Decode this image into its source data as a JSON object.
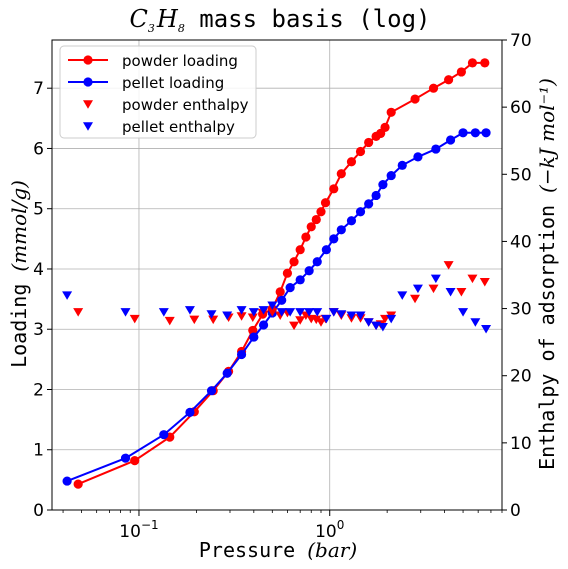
{
  "chart_data": {
    "type": "line",
    "title": {
      "mol_C": "C",
      "sub_3": "3",
      "mol_H": "H",
      "sub_8": "8",
      "rest": " mass basis (log)"
    },
    "xlabel": {
      "text": "Pressure ",
      "unit": "(bar)"
    },
    "ylabel": {
      "text": "Loading ",
      "unit": "(mmol/g)"
    },
    "y2label": {
      "text": "Enthalpy of adsorption ",
      "unit": "(−kJ mol⁻¹)"
    },
    "x_scale": "log",
    "xlim": [
      0.035,
      8.0
    ],
    "ylim": [
      0,
      7.8
    ],
    "y2lim": [
      0,
      70
    ],
    "x_ticks": [
      {
        "value": 0.1,
        "base": "10",
        "exp": "−1"
      },
      {
        "value": 1,
        "base": "10",
        "exp": "0"
      }
    ],
    "y_ticks": [
      0,
      1,
      2,
      3,
      4,
      5,
      6,
      7
    ],
    "y2_ticks": [
      0,
      10,
      20,
      30,
      40,
      50,
      60,
      70
    ],
    "grid": true,
    "legend_position": "top-left",
    "series": [
      {
        "name": "powder loading",
        "kind": "loading",
        "color": "#ff0000",
        "x": [
          0.048,
          0.095,
          0.145,
          0.195,
          0.245,
          0.295,
          0.345,
          0.395,
          0.445,
          0.5,
          0.55,
          0.6,
          0.65,
          0.7,
          0.75,
          0.8,
          0.85,
          0.9,
          0.95,
          1.05,
          1.15,
          1.3,
          1.45,
          1.6,
          1.75,
          1.85,
          1.95,
          2.1,
          2.8,
          3.5,
          4.2,
          4.9,
          5.6,
          6.5
        ],
        "y": [
          0.43,
          0.82,
          1.21,
          1.63,
          1.98,
          2.3,
          2.63,
          2.98,
          3.25,
          3.34,
          3.62,
          3.93,
          4.12,
          4.32,
          4.53,
          4.7,
          4.82,
          4.95,
          5.1,
          5.33,
          5.58,
          5.78,
          5.95,
          6.1,
          6.2,
          6.25,
          6.35,
          6.6,
          6.82,
          7.0,
          7.14,
          7.27,
          7.42,
          7.42
        ]
      },
      {
        "name": "pellet loading",
        "kind": "loading",
        "color": "#0000ff",
        "x": [
          0.042,
          0.085,
          0.135,
          0.185,
          0.24,
          0.29,
          0.345,
          0.4,
          0.45,
          0.5,
          0.56,
          0.62,
          0.7,
          0.78,
          0.86,
          0.96,
          1.05,
          1.15,
          1.3,
          1.45,
          1.6,
          1.75,
          1.9,
          2.1,
          2.4,
          2.9,
          3.6,
          4.3,
          5.0,
          5.8,
          6.6
        ],
        "y": [
          0.48,
          0.86,
          1.25,
          1.62,
          1.98,
          2.27,
          2.58,
          2.87,
          3.07,
          3.27,
          3.48,
          3.69,
          3.82,
          3.97,
          4.12,
          4.32,
          4.5,
          4.65,
          4.8,
          4.95,
          5.08,
          5.22,
          5.4,
          5.55,
          5.72,
          5.86,
          5.99,
          6.14,
          6.26,
          6.26,
          6.26
        ]
      },
      {
        "name": "powder enthalpy",
        "kind": "enthalpy",
        "color": "#ff0000",
        "x": [
          0.048,
          0.095,
          0.145,
          0.195,
          0.245,
          0.295,
          0.345,
          0.395,
          0.445,
          0.5,
          0.55,
          0.6,
          0.65,
          0.7,
          0.75,
          0.8,
          0.85,
          0.9,
          0.95,
          1.05,
          1.15,
          1.3,
          1.45,
          1.6,
          1.75,
          1.85,
          1.95,
          2.1,
          2.8,
          3.5,
          4.2,
          4.9,
          5.6,
          6.5
        ],
        "y": [
          29.5,
          28.5,
          28.2,
          28.4,
          28.4,
          28.7,
          28.9,
          28.7,
          29.4,
          29.5,
          29.0,
          29.4,
          27.5,
          28.3,
          29.0,
          28.5,
          28.4,
          28.0,
          28.5,
          29.5,
          29.0,
          28.6,
          28.6,
          28.0,
          27.5,
          27.7,
          28.5,
          29.0,
          31.5,
          33.0,
          36.5,
          32.5,
          34.5,
          34.0
        ]
      },
      {
        "name": "pellet enthalpy",
        "kind": "enthalpy",
        "color": "#0000ff",
        "x": [
          0.042,
          0.085,
          0.135,
          0.185,
          0.24,
          0.29,
          0.345,
          0.4,
          0.45,
          0.5,
          0.56,
          0.62,
          0.7,
          0.78,
          0.86,
          0.96,
          1.05,
          1.15,
          1.3,
          1.45,
          1.6,
          1.75,
          1.9,
          2.1,
          2.4,
          2.9,
          3.6,
          4.3,
          5.0,
          5.8,
          6.6
        ],
        "y": [
          32.0,
          29.5,
          29.5,
          29.8,
          29.2,
          29.0,
          29.8,
          29.5,
          29.8,
          30.5,
          29.5,
          29.5,
          29.5,
          29.5,
          29.5,
          28.5,
          29.5,
          29.2,
          29.0,
          29.0,
          28.0,
          27.5,
          27.3,
          28.5,
          32.0,
          33.0,
          34.5,
          32.5,
          29.5,
          28.0,
          27.0
        ]
      }
    ]
  }
}
